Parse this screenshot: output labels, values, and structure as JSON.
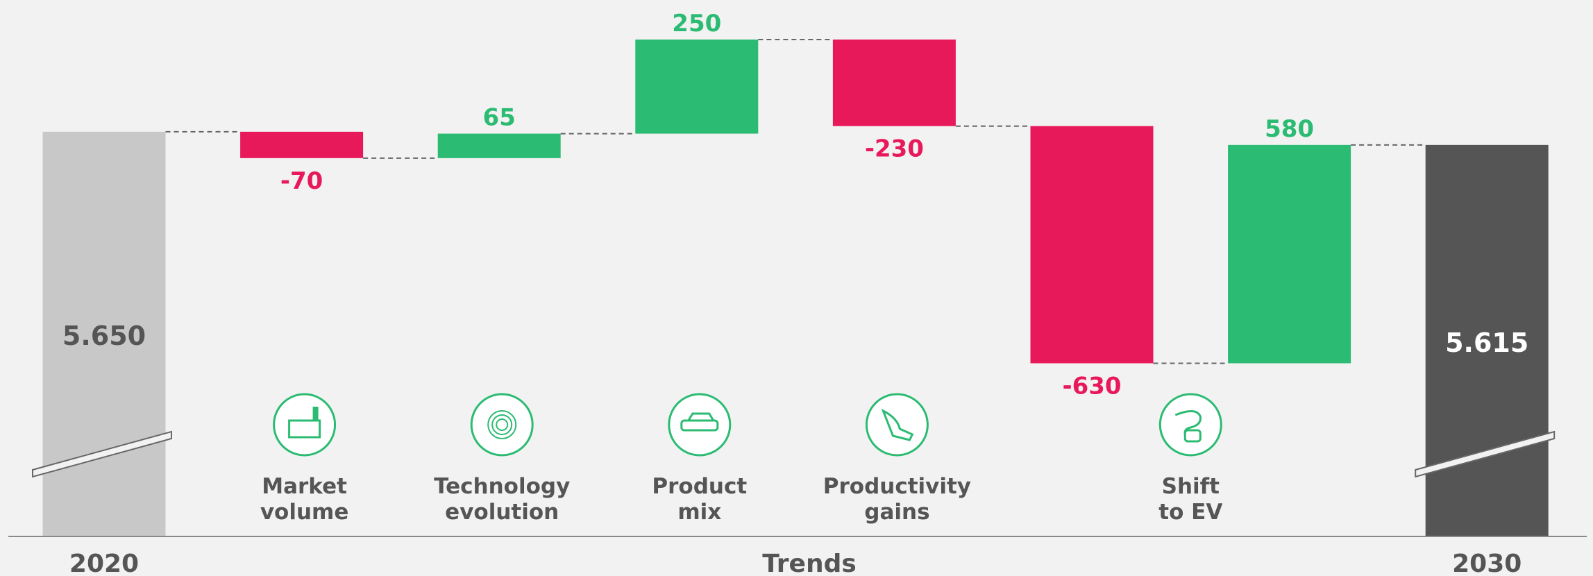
{
  "chart_data": {
    "type": "waterfall",
    "start": {
      "label": "2020",
      "value": 5650,
      "value_label": "5.650",
      "color": "#c8c8c8"
    },
    "end": {
      "label": "2030",
      "value": 5615,
      "value_label": "5.615",
      "color": "#555555"
    },
    "categories": [
      [
        "Market",
        "volume"
      ],
      [
        "Technology",
        "evolution"
      ],
      [
        "Product",
        "mix"
      ],
      [
        "Productivity",
        "gains"
      ],
      [
        "Shift",
        "to EV"
      ],
      null
    ],
    "values": [
      -70,
      65,
      250,
      -230,
      -630,
      580
    ],
    "increase_color": "#2bbb72",
    "decrease_color": "#e8195a",
    "xlabel": "Trends",
    "ylim": [
      4575,
      6000
    ]
  }
}
